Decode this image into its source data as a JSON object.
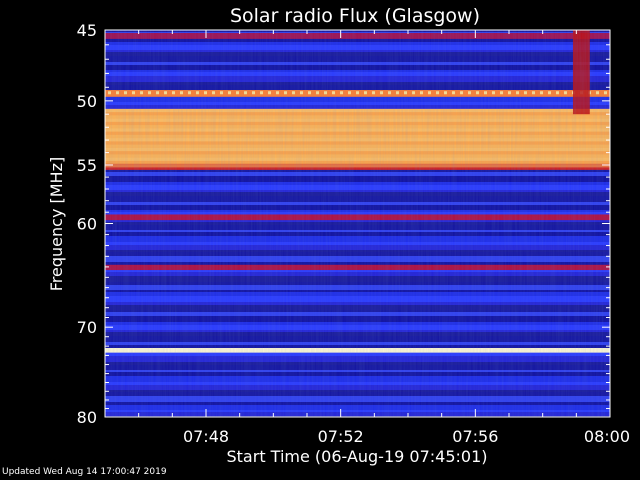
{
  "updated": "Updated Wed Aug 14 17:00:47 2019",
  "chart_data": {
    "type": "heatmap",
    "title": "Solar radio Flux (Glasgow)",
    "xlabel": "Start Time (06-Aug-19 07:45:01)",
    "ylabel": "Frequency [MHz]",
    "x_range_minutes": [
      0,
      15
    ],
    "x_ticks": [
      {
        "label": "07:48",
        "minute": 3
      },
      {
        "label": "07:52",
        "minute": 7
      },
      {
        "label": "07:56",
        "minute": 11
      },
      {
        "label": "08:00",
        "minute": 15
      }
    ],
    "y_scale": "log",
    "y_range_mhz": [
      45,
      80
    ],
    "y_ticks": [
      45,
      50,
      55,
      60,
      70,
      80
    ],
    "colormap": [
      "#10105a",
      "#2020d8",
      "#3a50ff",
      "#b01040",
      "#ff5010",
      "#ffa040",
      "#fff0a0"
    ],
    "background_level": "medium",
    "bands": [
      {
        "mhz_from": 45.2,
        "mhz_to": 45.6,
        "level": "medium-high",
        "color": "#a01050"
      },
      {
        "mhz_from": 49.2,
        "mhz_to": 49.7,
        "level": "high",
        "color": "#ff8030"
      },
      {
        "mhz_from": 50.6,
        "mhz_to": 55.2,
        "level": "very high",
        "color": "#ffb050"
      },
      {
        "mhz_from": 54.9,
        "mhz_to": 55.4,
        "level": "high",
        "color": "#d02020"
      },
      {
        "mhz_from": 59.2,
        "mhz_to": 59.7,
        "level": "medium-high",
        "color": "#b01040"
      },
      {
        "mhz_from": 63.8,
        "mhz_to": 64.3,
        "level": "medium-high",
        "color": "#b01040"
      },
      {
        "mhz_from": 72.2,
        "mhz_to": 72.7,
        "level": "saturated",
        "color": "#fff8d0"
      }
    ],
    "events": [
      {
        "minute_from": 13.9,
        "minute_to": 14.4,
        "mhz_from": 45,
        "mhz_to": 51,
        "level": "high",
        "color": "#c01010"
      }
    ]
  }
}
